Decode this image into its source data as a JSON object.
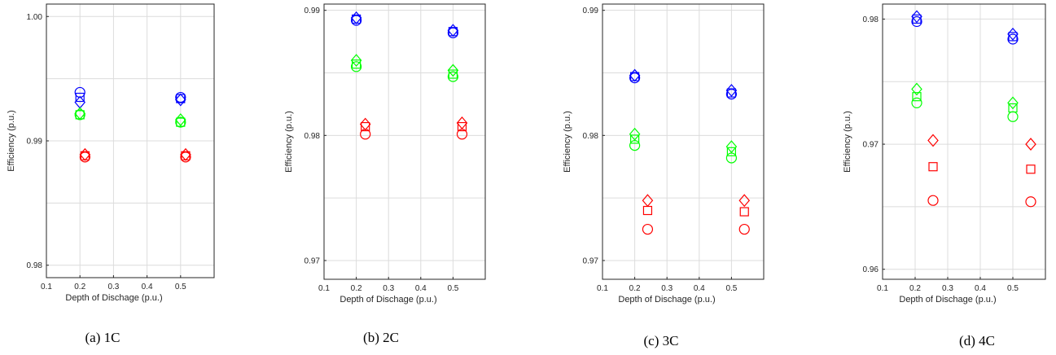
{
  "colors": {
    "blue": "#0000ff",
    "green": "#00ff00",
    "red": "#ff0000",
    "grid": "#dcdcdc",
    "axis": "#262626"
  },
  "chart_data": [
    {
      "type": "scatter",
      "caption": "(a)  1C",
      "xlabel": "Depth of Dischage (p.u.)",
      "ylabel": "Efficiency (p.u.)",
      "xlim": [
        0.1,
        0.6
      ],
      "ylim": [
        0.979,
        1.001
      ],
      "xticks": [
        0.1,
        0.2,
        0.3,
        0.4,
        0.5
      ],
      "yticks": [
        0.98,
        0.99,
        1.0
      ],
      "yticklabels": [
        "0.98",
        "0.99",
        "1.00"
      ],
      "ygrid": [
        0.98,
        0.985,
        0.99,
        0.995,
        1.0
      ],
      "grid": true,
      "series": [
        {
          "color": "blue",
          "marker": "circle",
          "x": [
            0.2,
            0.5
          ],
          "y": [
            0.9939,
            0.9935
          ]
        },
        {
          "color": "blue",
          "marker": "square",
          "x": [
            0.2,
            0.5
          ],
          "y": [
            0.9935,
            0.9934
          ]
        },
        {
          "color": "blue",
          "marker": "diamond",
          "x": [
            0.2,
            0.5
          ],
          "y": [
            0.9931,
            0.9933
          ]
        },
        {
          "color": "green",
          "marker": "circle",
          "x": [
            0.2,
            0.5
          ],
          "y": [
            0.9921,
            0.9915
          ]
        },
        {
          "color": "green",
          "marker": "square",
          "x": [
            0.2,
            0.5
          ],
          "y": [
            0.9921,
            0.9915
          ]
        },
        {
          "color": "green",
          "marker": "diamond",
          "x": [
            0.2,
            0.5
          ],
          "y": [
            0.9922,
            0.9917
          ]
        },
        {
          "color": "red",
          "marker": "circle",
          "x": [
            0.215,
            0.515
          ],
          "y": [
            0.9887,
            0.9887
          ]
        },
        {
          "color": "red",
          "marker": "square",
          "x": [
            0.215,
            0.515
          ],
          "y": [
            0.9888,
            0.9888
          ]
        },
        {
          "color": "red",
          "marker": "diamond",
          "x": [
            0.215,
            0.515
          ],
          "y": [
            0.9889,
            0.9889
          ]
        }
      ]
    },
    {
      "type": "scatter",
      "caption": "(b)  2C",
      "xlabel": "Depth of Dischage (p.u.)",
      "ylabel": "Efficiency (p.u.)",
      "xlim": [
        0.1,
        0.6
      ],
      "ylim": [
        0.9685,
        0.9905
      ],
      "xticks": [
        0.1,
        0.2,
        0.3,
        0.4,
        0.5
      ],
      "yticks": [
        0.97,
        0.98,
        0.99
      ],
      "yticklabels": [
        "0.97",
        "0.98",
        "0.99"
      ],
      "ygrid": [
        0.97,
        0.975,
        0.98,
        0.985,
        0.99
      ],
      "grid": true,
      "series": [
        {
          "color": "blue",
          "marker": "circle",
          "x": [
            0.2,
            0.5
          ],
          "y": [
            0.9892,
            0.9882
          ]
        },
        {
          "color": "blue",
          "marker": "square",
          "x": [
            0.2,
            0.5
          ],
          "y": [
            0.9893,
            0.9883
          ]
        },
        {
          "color": "blue",
          "marker": "diamond",
          "x": [
            0.2,
            0.5
          ],
          "y": [
            0.9894,
            0.9884
          ]
        },
        {
          "color": "green",
          "marker": "circle",
          "x": [
            0.2,
            0.5
          ],
          "y": [
            0.9855,
            0.9847
          ]
        },
        {
          "color": "green",
          "marker": "square",
          "x": [
            0.2,
            0.5
          ],
          "y": [
            0.9857,
            0.9849
          ]
        },
        {
          "color": "green",
          "marker": "diamond",
          "x": [
            0.2,
            0.5
          ],
          "y": [
            0.986,
            0.9852
          ]
        },
        {
          "color": "red",
          "marker": "circle",
          "x": [
            0.228,
            0.528
          ],
          "y": [
            0.9801,
            0.9801
          ]
        },
        {
          "color": "red",
          "marker": "square",
          "x": [
            0.228,
            0.528
          ],
          "y": [
            0.9807,
            0.9807
          ]
        },
        {
          "color": "red",
          "marker": "diamond",
          "x": [
            0.228,
            0.528
          ],
          "y": [
            0.9809,
            0.981
          ]
        }
      ]
    },
    {
      "type": "scatter",
      "caption": "(c)  3C",
      "xlabel": "Depth of Dischage (p.u.)",
      "ylabel": "Efficiency (p.u.)",
      "xlim": [
        0.1,
        0.6
      ],
      "ylim": [
        0.9685,
        0.9905
      ],
      "xticks": [
        0.1,
        0.2,
        0.3,
        0.4,
        0.5
      ],
      "yticks": [
        0.97,
        0.98,
        0.99
      ],
      "yticklabels": [
        "0.97",
        "0.98",
        "0.99"
      ],
      "ygrid": [
        0.97,
        0.975,
        0.98,
        0.985,
        0.99
      ],
      "grid": true,
      "series": [
        {
          "color": "blue",
          "marker": "circle",
          "x": [
            0.2,
            0.5
          ],
          "y": [
            0.9846,
            0.9833
          ]
        },
        {
          "color": "blue",
          "marker": "square",
          "x": [
            0.2,
            0.5
          ],
          "y": [
            0.9847,
            0.9834
          ]
        },
        {
          "color": "blue",
          "marker": "diamond",
          "x": [
            0.2,
            0.5
          ],
          "y": [
            0.9848,
            0.9836
          ]
        },
        {
          "color": "green",
          "marker": "circle",
          "x": [
            0.2,
            0.5
          ],
          "y": [
            0.9792,
            0.9782
          ]
        },
        {
          "color": "green",
          "marker": "square",
          "x": [
            0.2,
            0.5
          ],
          "y": [
            0.9797,
            0.9787
          ]
        },
        {
          "color": "green",
          "marker": "diamond",
          "x": [
            0.2,
            0.5
          ],
          "y": [
            0.9801,
            0.9791
          ]
        },
        {
          "color": "red",
          "marker": "circle",
          "x": [
            0.24,
            0.54
          ],
          "y": [
            0.9725,
            0.9725
          ]
        },
        {
          "color": "red",
          "marker": "square",
          "x": [
            0.24,
            0.54
          ],
          "y": [
            0.974,
            0.9739
          ]
        },
        {
          "color": "red",
          "marker": "diamond",
          "x": [
            0.24,
            0.54
          ],
          "y": [
            0.9748,
            0.9748
          ]
        }
      ]
    },
    {
      "type": "scatter",
      "caption": "(d)  4C",
      "xlabel": "Depth of Dischage (p.u.)",
      "ylabel": "Efficiency (p.u.)",
      "xlim": [
        0.1,
        0.6
      ],
      "ylim": [
        0.9592,
        0.9812
      ],
      "xticks": [
        0.1,
        0.2,
        0.3,
        0.4,
        0.5
      ],
      "yticks": [
        0.96,
        0.97,
        0.98
      ],
      "yticklabels": [
        "0.96",
        "0.97",
        "0.98"
      ],
      "ygrid": [
        0.96,
        0.965,
        0.97,
        0.975,
        0.98
      ],
      "grid": true,
      "series": [
        {
          "color": "blue",
          "marker": "circle",
          "x": [
            0.205,
            0.5
          ],
          "y": [
            0.9798,
            0.9784
          ]
        },
        {
          "color": "blue",
          "marker": "square",
          "x": [
            0.205,
            0.5
          ],
          "y": [
            0.98,
            0.9786
          ]
        },
        {
          "color": "blue",
          "marker": "diamond",
          "x": [
            0.205,
            0.5
          ],
          "y": [
            0.9802,
            0.9788
          ]
        },
        {
          "color": "green",
          "marker": "circle",
          "x": [
            0.205,
            0.5
          ],
          "y": [
            0.9733,
            0.9722
          ]
        },
        {
          "color": "green",
          "marker": "square",
          "x": [
            0.205,
            0.5
          ],
          "y": [
            0.9738,
            0.9729
          ]
        },
        {
          "color": "green",
          "marker": "diamond",
          "x": [
            0.205,
            0.5
          ],
          "y": [
            0.9744,
            0.9733
          ]
        },
        {
          "color": "red",
          "marker": "circle",
          "x": [
            0.255,
            0.555
          ],
          "y": [
            0.9655,
            0.9654
          ]
        },
        {
          "color": "red",
          "marker": "square",
          "x": [
            0.255,
            0.555
          ],
          "y": [
            0.9682,
            0.968
          ]
        },
        {
          "color": "red",
          "marker": "diamond",
          "x": [
            0.255,
            0.555
          ],
          "y": [
            0.9703,
            0.97
          ]
        }
      ]
    }
  ]
}
